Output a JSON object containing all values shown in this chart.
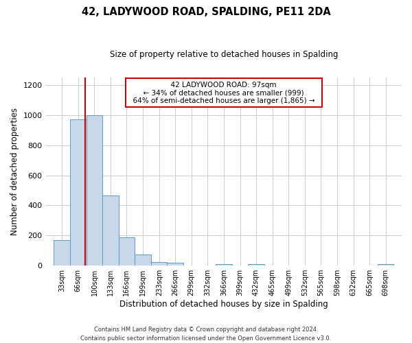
{
  "title": "42, LADYWOOD ROAD, SPALDING, PE11 2DA",
  "subtitle": "Size of property relative to detached houses in Spalding",
  "xlabel": "Distribution of detached houses by size in Spalding",
  "ylabel": "Number of detached properties",
  "bin_labels": [
    "33sqm",
    "66sqm",
    "100sqm",
    "133sqm",
    "166sqm",
    "199sqm",
    "233sqm",
    "266sqm",
    "299sqm",
    "332sqm",
    "366sqm",
    "399sqm",
    "432sqm",
    "465sqm",
    "499sqm",
    "532sqm",
    "565sqm",
    "598sqm",
    "632sqm",
    "665sqm",
    "698sqm"
  ],
  "bar_heights": [
    170,
    970,
    1000,
    465,
    190,
    75,
    25,
    18,
    0,
    0,
    12,
    0,
    10,
    0,
    0,
    0,
    0,
    0,
    0,
    0,
    10
  ],
  "bar_color": "#c8d8ea",
  "bar_edge_color": "#5a9abf",
  "bin_edges": [
    33,
    66,
    100,
    133,
    166,
    199,
    233,
    266,
    299,
    332,
    366,
    399,
    432,
    465,
    499,
    532,
    565,
    598,
    632,
    665,
    698,
    731
  ],
  "vline_x": 97,
  "vline_color": "#cc0000",
  "ylim": [
    0,
    1250
  ],
  "yticks": [
    0,
    200,
    400,
    600,
    800,
    1000,
    1200
  ],
  "annotation_title": "42 LADYWOOD ROAD: 97sqm",
  "annotation_line1": "← 34% of detached houses are smaller (999)",
  "annotation_line2": "64% of semi-detached houses are larger (1,865) →",
  "annotation_box_color": "#ffffff",
  "annotation_box_edge": "#cc0000",
  "footer1": "Contains HM Land Registry data © Crown copyright and database right 2024.",
  "footer2": "Contains public sector information licensed under the Open Government Licence v3.0.",
  "bg_color": "#ffffff",
  "grid_color": "#cccccc"
}
